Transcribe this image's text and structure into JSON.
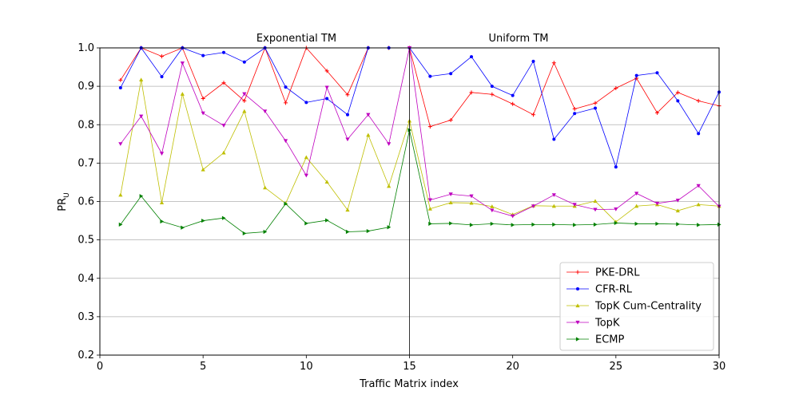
{
  "chart_data": {
    "type": "line",
    "annotations": {
      "left_region": "Exponential TM",
      "right_region": "Uniform TM",
      "divider_x": 15
    },
    "xlabel": "Traffic Matrix index",
    "ylabel_main": "PR",
    "ylabel_sub": "U",
    "xlim": [
      0,
      30
    ],
    "ylim": [
      0.2,
      1.0
    ],
    "x_ticks": [
      0,
      5,
      10,
      15,
      20,
      25,
      30
    ],
    "y_ticks": [
      0.2,
      0.3,
      0.4,
      0.5,
      0.6,
      0.7,
      0.8,
      0.9,
      1.0
    ],
    "grid": "horizontal",
    "legend_position": "lower-right",
    "x": [
      1,
      2,
      3,
      4,
      5,
      6,
      7,
      8,
      9,
      10,
      11,
      12,
      13,
      14,
      15,
      16,
      17,
      18,
      19,
      20,
      21,
      22,
      23,
      24,
      25,
      26,
      27,
      28,
      29,
      30
    ],
    "series": [
      {
        "name": "PKE-DRL",
        "color": "#ff0000",
        "marker": "plus",
        "values": [
          0.916,
          1.0,
          0.978,
          1.0,
          0.868,
          0.909,
          0.862,
          1.0,
          0.857,
          1.0,
          0.94,
          0.878,
          1.0,
          1.0,
          1.0,
          0.795,
          0.812,
          0.884,
          0.879,
          0.854,
          0.826,
          0.961,
          0.841,
          0.856,
          0.895,
          0.921,
          0.831,
          0.884,
          0.862,
          0.849
        ]
      },
      {
        "name": "CFR-RL",
        "color": "#0000ff",
        "marker": "dot",
        "values": [
          0.896,
          1.0,
          0.925,
          1.0,
          0.98,
          0.988,
          0.963,
          1.0,
          0.898,
          0.858,
          0.868,
          0.826,
          1.0,
          1.0,
          1.0,
          0.926,
          0.933,
          0.977,
          0.9,
          0.876,
          0.965,
          0.762,
          0.829,
          0.843,
          0.69,
          0.928,
          0.935,
          0.862,
          0.777,
          0.885
        ]
      },
      {
        "name": "TopK Cum-Centrality",
        "color": "#bfbf00",
        "marker": "triangle-up",
        "values": [
          0.617,
          0.917,
          0.597,
          0.88,
          0.683,
          0.727,
          0.835,
          0.636,
          0.595,
          0.715,
          0.651,
          0.578,
          0.773,
          0.64,
          0.81,
          0.581,
          0.597,
          0.596,
          0.587,
          0.566,
          0.589,
          0.588,
          0.588,
          0.601,
          0.547,
          0.588,
          0.592,
          0.576,
          0.592,
          0.588
        ]
      },
      {
        "name": "TopK",
        "color": "#bf00bf",
        "marker": "triangle-down",
        "values": [
          0.75,
          0.822,
          0.725,
          0.96,
          0.83,
          0.798,
          0.88,
          0.835,
          0.758,
          0.668,
          0.897,
          0.762,
          0.826,
          0.75,
          1.0,
          0.604,
          0.619,
          0.614,
          0.577,
          0.562,
          0.588,
          0.617,
          0.592,
          0.579,
          0.58,
          0.621,
          0.595,
          0.603,
          0.641,
          0.587
        ]
      },
      {
        "name": "ECMP",
        "color": "#008000",
        "marker": "triangle-right",
        "values": [
          0.54,
          0.614,
          0.548,
          0.532,
          0.55,
          0.557,
          0.517,
          0.521,
          0.594,
          0.543,
          0.551,
          0.521,
          0.523,
          0.533,
          0.786,
          0.542,
          0.543,
          0.539,
          0.542,
          0.539,
          0.54,
          0.54,
          0.539,
          0.54,
          0.544,
          0.542,
          0.542,
          0.541,
          0.539,
          0.54
        ]
      }
    ]
  }
}
